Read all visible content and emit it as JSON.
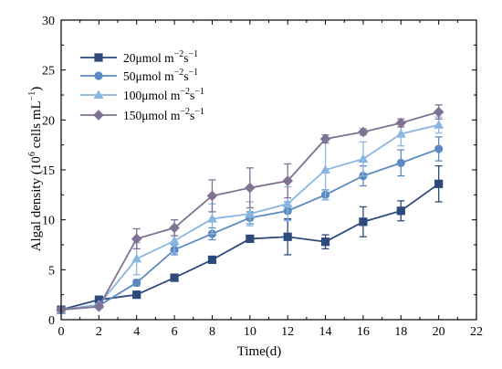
{
  "chart_data": {
    "type": "line",
    "title": "",
    "xlabel": "Time(d)",
    "ylabel": {
      "main": "Algal density (10",
      "sup": "6",
      "mid": " cells mL",
      "sup2": "−1",
      "end": ")"
    },
    "xlim": [
      0,
      22
    ],
    "ylim": [
      0,
      30
    ],
    "xticks": [
      0,
      2,
      4,
      6,
      8,
      10,
      12,
      14,
      16,
      18,
      20,
      22
    ],
    "yticks": [
      0,
      5,
      10,
      15,
      20,
      25,
      30
    ],
    "grid": false,
    "legend_position": "top-left",
    "x": [
      0,
      2,
      4,
      6,
      8,
      10,
      12,
      14,
      16,
      18,
      20
    ],
    "series": [
      {
        "name": {
          "base": "20μmol m",
          "sup1": "−2",
          "mid": "s",
          "sup2": "−1"
        },
        "marker": "square",
        "color": "#2e4a7d",
        "values": [
          1.0,
          2.0,
          2.5,
          4.2,
          6.0,
          8.1,
          8.3,
          7.8,
          9.8,
          10.9,
          13.6
        ],
        "errors": [
          0.1,
          0.1,
          0.15,
          0.3,
          0.2,
          0.3,
          1.8,
          0.7,
          1.5,
          1.0,
          1.8
        ]
      },
      {
        "name": {
          "base": "50μmol m",
          "sup1": "−2",
          "mid": "s",
          "sup2": "−1"
        },
        "marker": "circle",
        "color": "#5b8ac2",
        "values": [
          1.0,
          1.4,
          3.7,
          7.0,
          8.6,
          10.2,
          10.9,
          12.5,
          14.4,
          15.7,
          17.1
        ],
        "errors": [
          0.1,
          0.1,
          0.3,
          0.5,
          0.6,
          0.6,
          0.9,
          0.5,
          1.0,
          1.3,
          1.2
        ]
      },
      {
        "name": {
          "base": "100μmol m",
          "sup1": "−2",
          "mid": "s",
          "sup2": "−1"
        },
        "marker": "triangle",
        "color": "#89b6e0",
        "values": [
          1.0,
          1.5,
          6.1,
          7.9,
          10.1,
          10.6,
          11.6,
          15.0,
          16.1,
          18.6,
          19.5
        ],
        "errors": [
          0.1,
          0.1,
          1.6,
          1.2,
          1.5,
          1.2,
          1.7,
          3.0,
          1.7,
          1.2,
          0.8
        ]
      },
      {
        "name": {
          "base": "150μmol m",
          "sup1": "−2",
          "mid": "s",
          "sup2": "−1"
        },
        "marker": "diamond",
        "color": "#7e7393",
        "values": [
          1.0,
          1.3,
          8.1,
          9.2,
          12.4,
          13.2,
          13.9,
          18.1,
          18.8,
          19.7,
          20.8
        ],
        "errors": [
          0.1,
          0.1,
          1.0,
          0.8,
          1.6,
          2.0,
          1.7,
          0.4,
          0.3,
          0.4,
          0.7
        ]
      }
    ]
  }
}
